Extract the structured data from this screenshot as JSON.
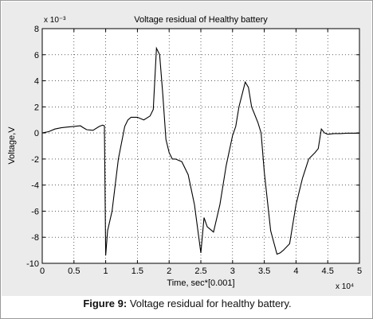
{
  "caption": {
    "label": "Figure 9:",
    "text": " Voltage residual for healthy battery."
  },
  "chart_data": {
    "type": "line",
    "title": "Voltage residual of Healthy battery",
    "xlabel": "Time, sec*[0.001]",
    "ylabel": "Voltage,V",
    "x_multiplier": "x 10⁴",
    "y_multiplier": "x 10⁻³",
    "xlim": [
      0,
      5
    ],
    "ylim": [
      -10,
      8
    ],
    "xticks": [
      0,
      0.5,
      1,
      1.5,
      2,
      2.5,
      3,
      3.5,
      4,
      4.5,
      5
    ],
    "xtick_labels": [
      "0",
      "0.5",
      "1",
      "1.5",
      "2",
      "2.5",
      "3",
      "3.5",
      "4",
      "4.5",
      "5"
    ],
    "yticks": [
      -10,
      -8,
      -6,
      -4,
      -2,
      0,
      2,
      4,
      6,
      8
    ],
    "ytick_labels": [
      "-10",
      "-8",
      "-6",
      "-4",
      "-2",
      "0",
      "2",
      "4",
      "6",
      "8"
    ],
    "grid": true,
    "line_color": "#000000",
    "series": [
      {
        "x": [
          0,
          0.1,
          0.2,
          0.3,
          0.4,
          0.5,
          0.6,
          0.65,
          0.7,
          0.8,
          0.9,
          0.95,
          0.98,
          1.0,
          1.03,
          1.1,
          1.2,
          1.3,
          1.35,
          1.4,
          1.5,
          1.6,
          1.7,
          1.75,
          1.8,
          1.85,
          1.9,
          1.95,
          2.0,
          2.05,
          2.1,
          2.2,
          2.3,
          2.4,
          2.5,
          2.55,
          2.6,
          2.7,
          2.8,
          2.9,
          3.0,
          3.05,
          3.1,
          3.2,
          3.25,
          3.3,
          3.4,
          3.45,
          3.5,
          3.6,
          3.7,
          3.75,
          3.8,
          3.9,
          4.0,
          4.1,
          4.2,
          4.3,
          4.35,
          4.4,
          4.45,
          4.5,
          4.6,
          4.7,
          4.8,
          4.9,
          5.0
        ],
        "y": [
          0.0,
          0.1,
          0.3,
          0.4,
          0.45,
          0.5,
          0.55,
          0.4,
          0.25,
          0.2,
          0.5,
          0.6,
          0.55,
          -9.4,
          -7.5,
          -6.0,
          -2.0,
          0.5,
          1.0,
          1.2,
          1.2,
          1.0,
          1.3,
          1.8,
          6.5,
          6.0,
          3.0,
          -0.5,
          -1.5,
          -2.0,
          -2.0,
          -2.2,
          -3.2,
          -5.5,
          -9.2,
          -6.5,
          -7.2,
          -7.6,
          -5.5,
          -2.5,
          -0.2,
          0.5,
          2.0,
          3.9,
          3.5,
          2.0,
          0.8,
          0.0,
          -3.0,
          -7.5,
          -9.3,
          -9.2,
          -9.0,
          -8.5,
          -5.5,
          -3.5,
          -2.0,
          -1.5,
          -1.2,
          0.3,
          0.0,
          -0.1,
          -0.05,
          -0.05,
          -0.02,
          -0.02,
          -0.02
        ]
      }
    ]
  }
}
